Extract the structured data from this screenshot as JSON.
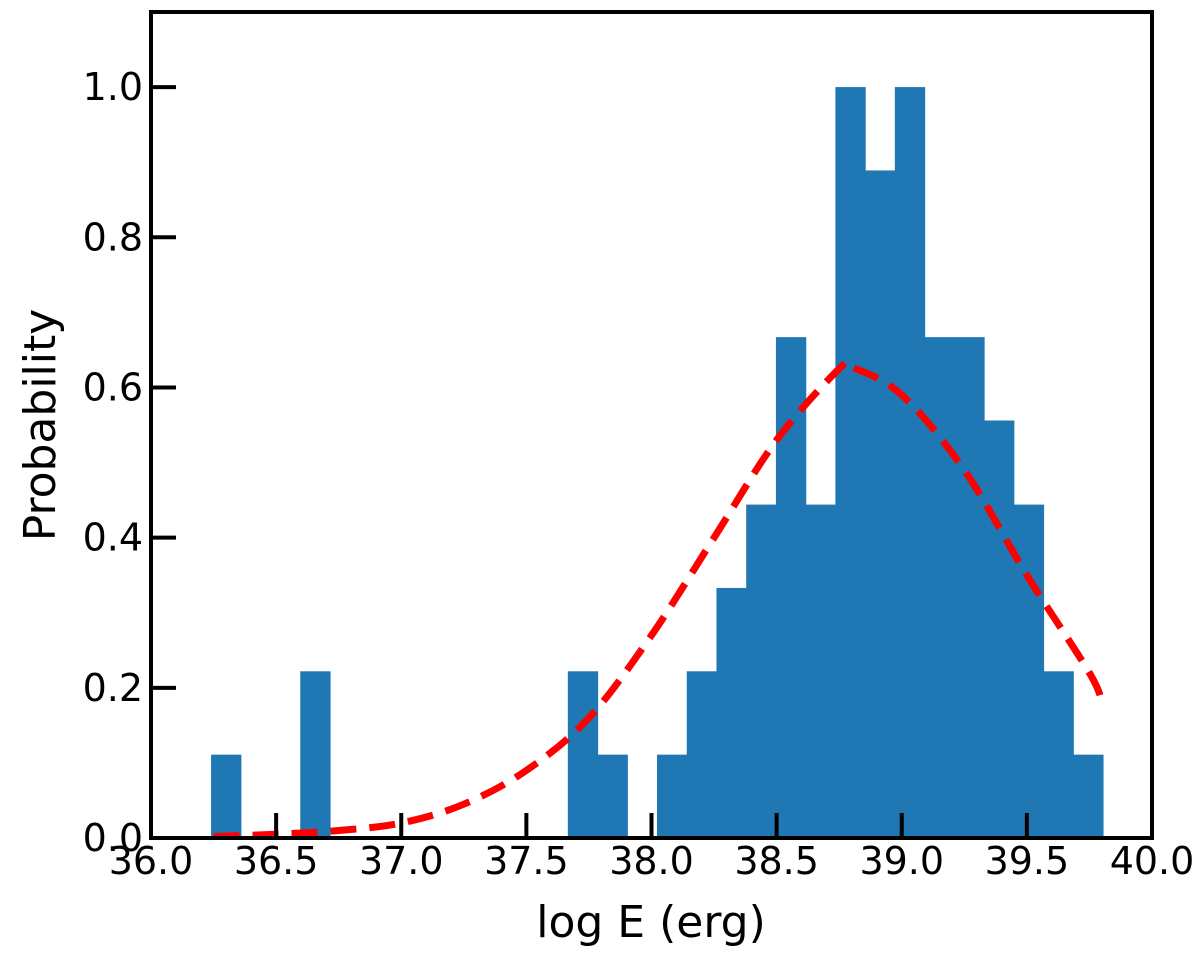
{
  "chart_data": {
    "type": "bar",
    "xlabel": "log E (erg)",
    "ylabel": "Probability",
    "xlim": [
      36.0,
      40.0
    ],
    "ylim": [
      0.0,
      1.1
    ],
    "xticks": [
      "36.0",
      "36.5",
      "37.0",
      "37.5",
      "38.0",
      "38.5",
      "39.0",
      "39.5",
      "40.0"
    ],
    "yticks": [
      "0.0",
      "0.2",
      "0.4",
      "0.6",
      "0.8",
      "1.0"
    ],
    "grid": false,
    "colors": {
      "bars": "#1f77b4",
      "curve": "#ff0000",
      "axes": "#000000"
    },
    "histogram": {
      "bin_start": 36.24,
      "bin_width": 0.1188,
      "values": [
        0.111,
        0,
        0,
        0.222,
        0,
        0,
        0,
        0,
        0,
        0,
        0,
        0,
        0.222,
        0.111,
        0,
        0.111,
        0.222,
        0.333,
        0.444,
        0.667,
        0.444,
        1.0,
        0.889,
        1.0,
        0.667,
        0.667,
        0.556,
        0.444,
        0.222,
        0.111
      ]
    },
    "fit_curve": {
      "style": "dashed",
      "x": [
        36.25,
        36.5,
        36.75,
        37.0,
        37.25,
        37.5,
        37.75,
        38.0,
        38.25,
        38.5,
        38.75,
        38.8,
        39.0,
        39.25,
        39.5,
        39.75,
        39.8
      ],
      "y": [
        0.002,
        0.005,
        0.01,
        0.02,
        0.045,
        0.09,
        0.16,
        0.27,
        0.4,
        0.53,
        0.625,
        0.627,
        0.59,
        0.49,
        0.35,
        0.22,
        0.18
      ]
    }
  }
}
